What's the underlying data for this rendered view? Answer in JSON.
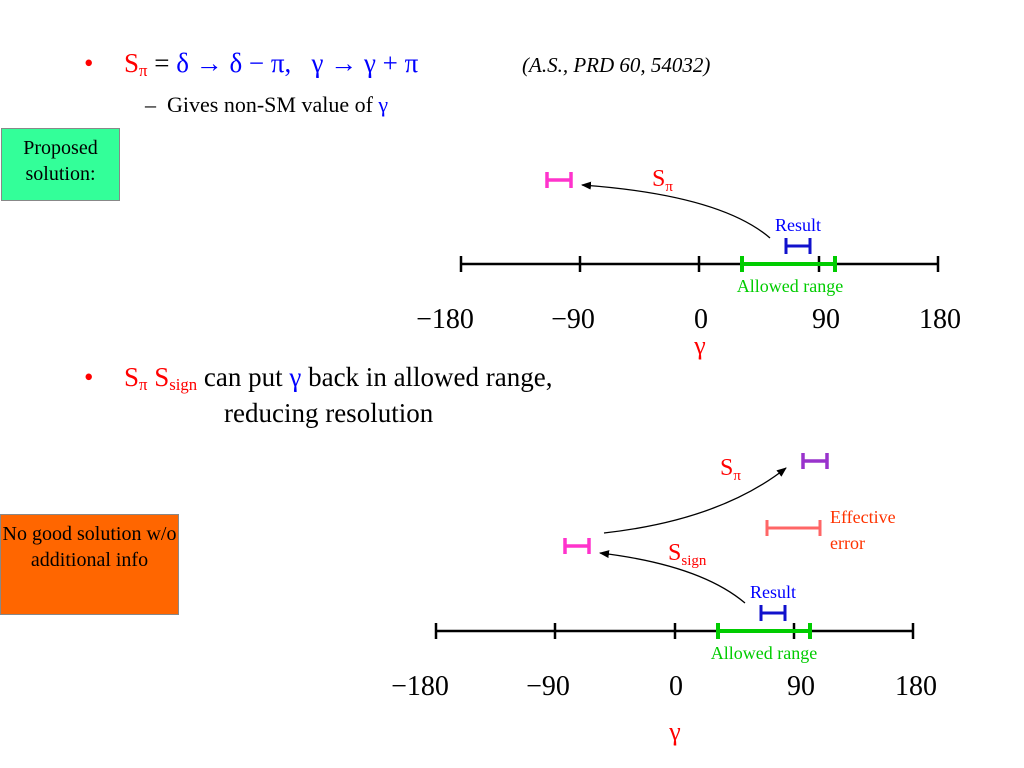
{
  "bullet1": {
    "marker": "•",
    "s_letter": "S",
    "s_sub": "π",
    "equals": "=",
    "formula": "δ → δ − π,   γ → γ + π",
    "citation": "(A.S., PRD 60, 54032)",
    "sub_dash": "–",
    "sub_text": "Gives non-SM value of",
    "sub_gamma": "γ"
  },
  "bullet2": {
    "marker": "•",
    "s1": "S",
    "s1_sub": "π",
    "s2": "S",
    "s2_sub": "sign",
    "text_a": "can put",
    "gamma": "γ",
    "text_b": "back in allowed range,",
    "line2": "reducing resolution"
  },
  "box_proposed": {
    "text": "Proposed solution:",
    "bg": "#33ff99"
  },
  "box_nogood": {
    "text": "No good solution w/o additional info",
    "bg": "#ff6600"
  },
  "diagram1": {
    "ticks": [
      "−180",
      "−90",
      "0",
      "90",
      "180"
    ],
    "axis_label": "γ",
    "result_label": "Result",
    "allowed_label": "Allowed range",
    "s_label": "S",
    "s_sub": "π"
  },
  "diagram2": {
    "ticks": [
      "−180",
      "−90",
      "0",
      "90",
      "180"
    ],
    "axis_label": "γ",
    "result_label": "Result",
    "allowed_label": "Allowed range",
    "s_pi_label": "S",
    "s_pi_sub": "π",
    "s_sign_label": "S",
    "s_sign_sub": "sign",
    "effective_line1": "Effective",
    "effective_line2": "error"
  },
  "colors": {
    "red": "#ff0000",
    "blue": "#0000ff",
    "green": "#00cc00",
    "magenta": "#ff33cc",
    "purple": "#9933cc",
    "salmon": "#ff6666",
    "orange_text": "#ff3300",
    "dark_blue": "#1111cc"
  }
}
